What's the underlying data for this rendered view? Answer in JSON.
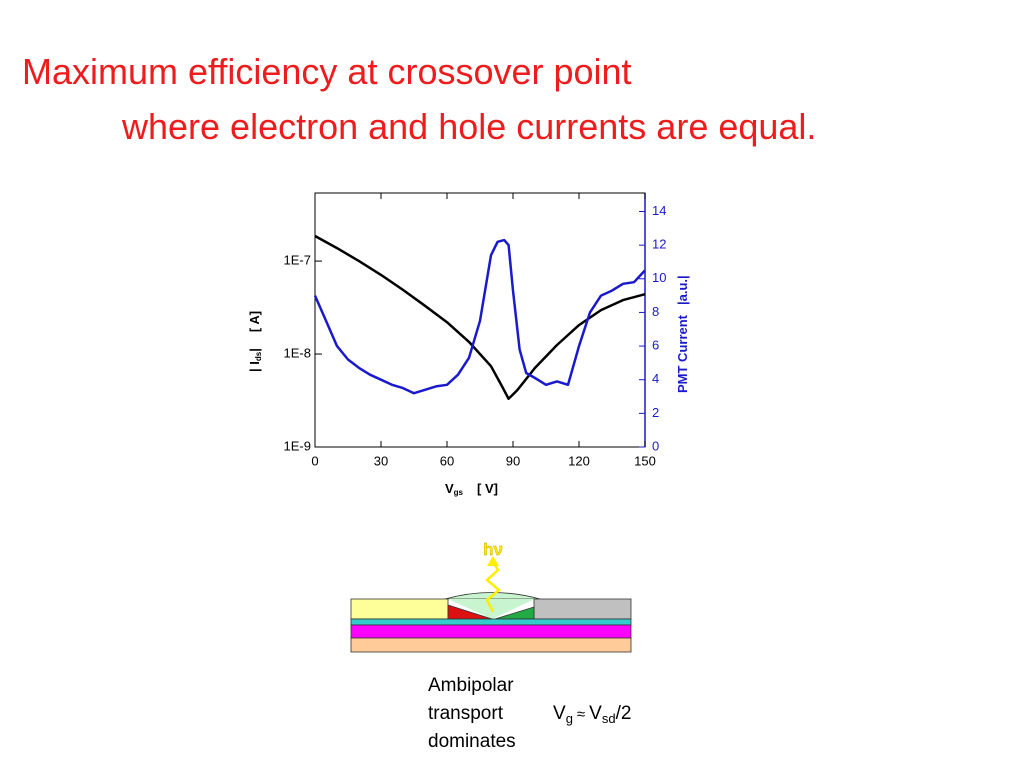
{
  "chart_data": {
    "type": "line",
    "title": [
      "Maximum efficiency at crossover point",
      "where electron and hole currents are equal."
    ],
    "x_label": {
      "main": "V",
      "sub": "gs",
      "unit": "[ V]"
    },
    "y_label": {
      "main": "| I",
      "sub": "ds",
      "end": "|",
      "unit": "[ A]"
    },
    "y2_label": {
      "main": "PMT Current",
      "unit": "|a.u.|"
    },
    "xlim": [
      0,
      150
    ],
    "xticks": [
      0,
      30,
      60,
      90,
      120,
      150
    ],
    "ylim": [
      1e-09,
      5.4e-07
    ],
    "yscale": "log",
    "yticks": [
      {
        "value": 1e-09,
        "label": "1E-9"
      },
      {
        "value": 1e-08,
        "label": "1E-8"
      },
      {
        "value": 1e-07,
        "label": "1E-7"
      }
    ],
    "y2lim": [
      0,
      15.1
    ],
    "y2ticks": [
      0,
      2,
      4,
      6,
      8,
      10,
      12,
      14
    ],
    "series": [
      {
        "name": "Ids",
        "color": "#000000",
        "x": [
          0,
          10,
          20,
          30,
          40,
          50,
          60,
          70,
          80,
          85,
          88,
          92,
          100,
          110,
          120,
          130,
          140,
          150
        ],
        "values": [
          1.86e-07,
          1.38e-07,
          1e-07,
          7.1e-08,
          4.9e-08,
          3.3e-08,
          2.2e-08,
          1.35e-08,
          7.4e-09,
          4.5e-09,
          3.3e-09,
          4.1e-09,
          7.1e-09,
          1.25e-08,
          2.05e-08,
          2.97e-08,
          3.8e-08,
          4.4e-08
        ]
      },
      {
        "name": "PMT",
        "color": "#1a1acc",
        "axis": "y2",
        "x": [
          0,
          5,
          10,
          15,
          20,
          25,
          30,
          35,
          40,
          45,
          50,
          55,
          60,
          65,
          70,
          75,
          80,
          83,
          86,
          88,
          90,
          93,
          96,
          100,
          105,
          110,
          115,
          120,
          125,
          130,
          135,
          140,
          145,
          150
        ],
        "values": [
          9.0,
          7.5,
          6.0,
          5.2,
          4.7,
          4.3,
          4.0,
          3.7,
          3.5,
          3.2,
          3.4,
          3.6,
          3.7,
          4.3,
          5.3,
          7.5,
          11.4,
          12.2,
          12.3,
          12.0,
          9.3,
          5.8,
          4.4,
          4.1,
          3.7,
          3.9,
          3.7,
          6.0,
          8.0,
          9.0,
          9.3,
          9.7,
          9.8,
          10.5
        ]
      }
    ]
  },
  "diagram": {
    "photon": "hν",
    "caption": [
      "Ambipolar",
      "transport",
      "dominates"
    ],
    "condition": {
      "v1": "V",
      "s1": "g",
      "approx": "≈",
      "v2": "V",
      "s2": "sd",
      "tail": "/2"
    }
  }
}
